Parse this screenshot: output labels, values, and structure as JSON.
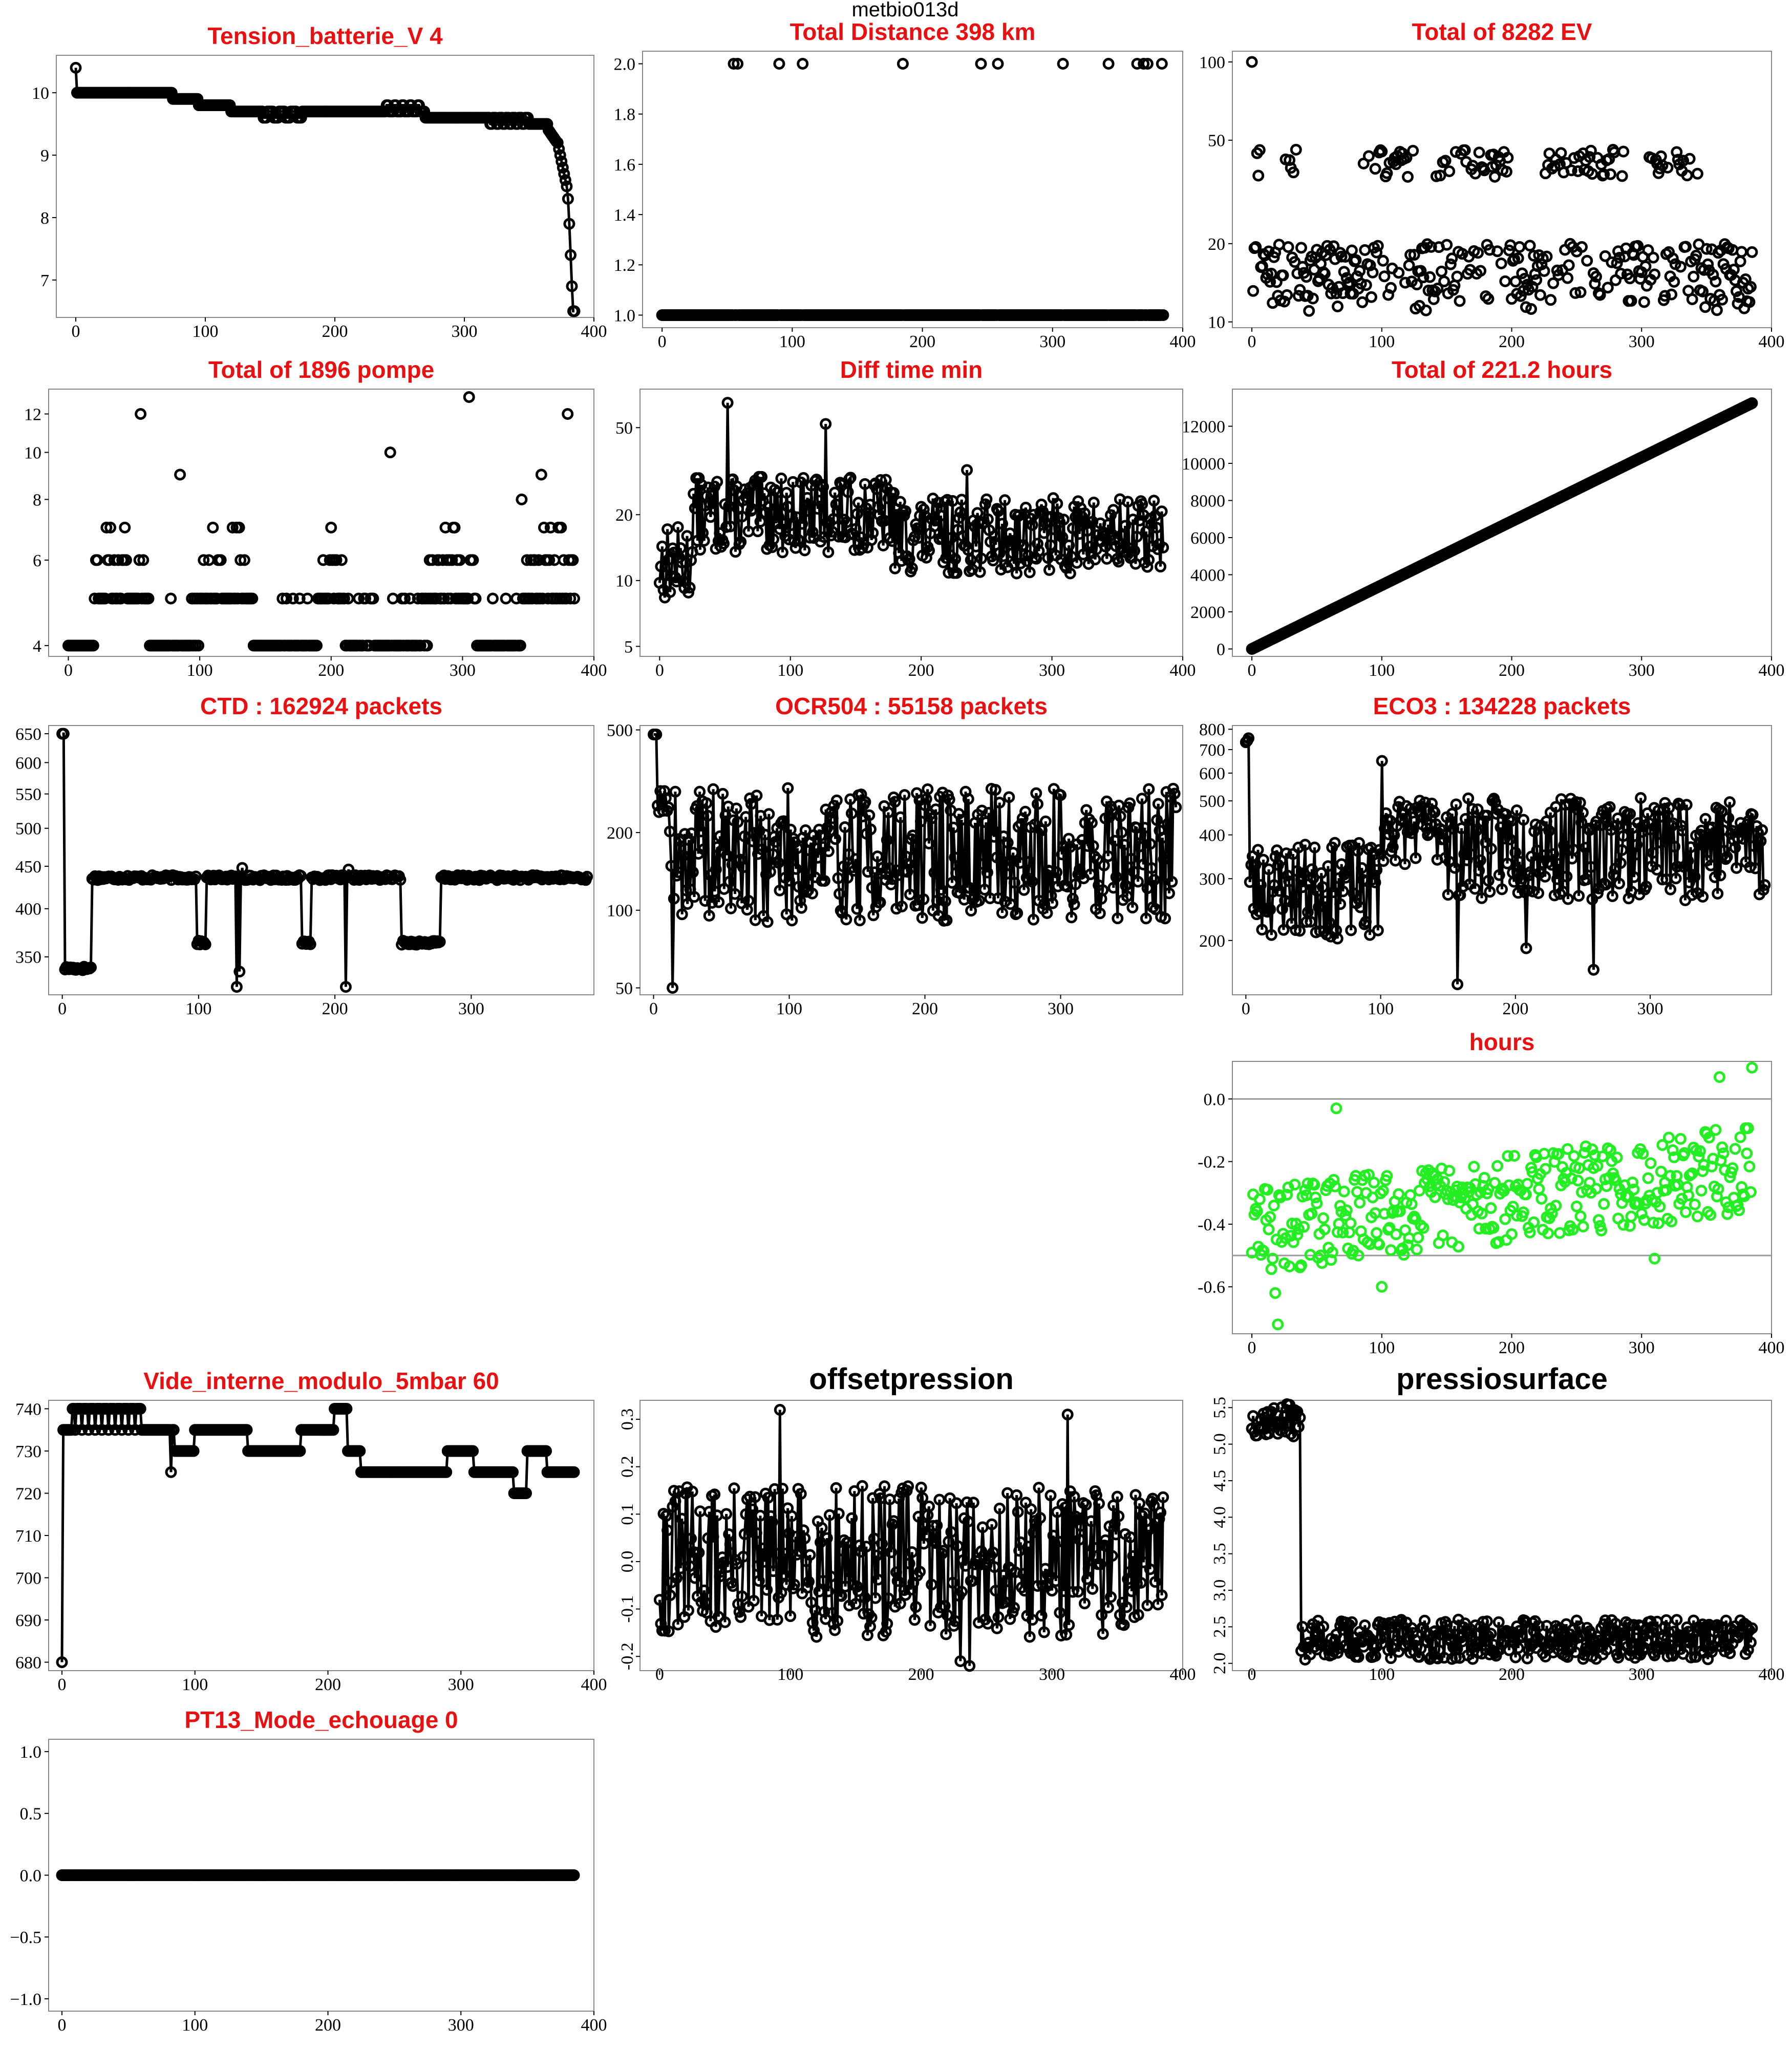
{
  "figure": {
    "suptitle": "metbio013d"
  },
  "chart_data": [
    {
      "id": "tension",
      "type": "line",
      "title": "Tension_batterie_V 4",
      "title_color": "#e81010",
      "xlim": [
        -15,
        400
      ],
      "ylim": [
        6.4,
        10.6
      ],
      "xticks": [
        0,
        100,
        200,
        300,
        400
      ],
      "yticks": [
        {
          "v": 7,
          "label": "7"
        },
        {
          "v": 8,
          "label": "8"
        },
        {
          "v": 9,
          "label": "9"
        },
        {
          "v": 10,
          "label": "10"
        }
      ],
      "gen": "tension",
      "marker_color": "#000000",
      "lines": true
    },
    {
      "id": "distance",
      "type": "scatter",
      "title": "Total Distance  398  km",
      "title_color": "#e81010",
      "xlim": [
        -15,
        400
      ],
      "ylim": [
        0.95,
        2.05
      ],
      "xticks": [
        0,
        100,
        200,
        300,
        400
      ],
      "yticks": [
        {
          "v": 1.0,
          "label": "1.0"
        },
        {
          "v": 1.2,
          "label": "1.2"
        },
        {
          "v": 1.4,
          "label": "1.4"
        },
        {
          "v": 1.6,
          "label": "1.6"
        },
        {
          "v": 1.8,
          "label": "1.8"
        },
        {
          "v": 2.0,
          "label": "2.0"
        }
      ],
      "gen": "distance",
      "marker_color": "#000000",
      "lines": false
    },
    {
      "id": "ev",
      "type": "scatter",
      "title": "Total of  8282  EV",
      "title_color": "#e81010",
      "xlim": [
        -15,
        400
      ],
      "ylim": [
        9.5,
        110
      ],
      "log": true,
      "xticks": [
        0,
        100,
        200,
        300,
        400
      ],
      "yticks": [
        {
          "v": 10,
          "label": "10"
        },
        {
          "v": 20,
          "label": "20"
        },
        {
          "v": 50,
          "label": "50"
        },
        {
          "v": 100,
          "label": "100"
        }
      ],
      "gen": "ev",
      "marker_color": "#000000",
      "lines": false
    },
    {
      "id": "pompe",
      "type": "scatter",
      "title": "Total of  1896  pompe",
      "title_color": "#e81010",
      "xlim": [
        -15,
        400
      ],
      "ylim": [
        3.8,
        13.5
      ],
      "log": true,
      "xticks": [
        0,
        100,
        200,
        300,
        400
      ],
      "yticks": [
        {
          "v": 4,
          "label": "4"
        },
        {
          "v": 6,
          "label": "6"
        },
        {
          "v": 8,
          "label": "8"
        },
        {
          "v": 10,
          "label": "10"
        },
        {
          "v": 12,
          "label": "12"
        }
      ],
      "gen": "pompe",
      "marker_color": "#000000",
      "lines": false
    },
    {
      "id": "difftime",
      "type": "line",
      "title": "Diff time min",
      "title_color": "#e81010",
      "xlim": [
        -15,
        400
      ],
      "ylim": [
        4.5,
        75
      ],
      "log": true,
      "xticks": [
        0,
        100,
        200,
        300,
        400
      ],
      "yticks": [
        {
          "v": 5,
          "label": "5"
        },
        {
          "v": 10,
          "label": "10"
        },
        {
          "v": 20,
          "label": "20"
        },
        {
          "v": 50,
          "label": "50"
        }
      ],
      "gen": "difftime",
      "marker_color": "#000000",
      "lines": true
    },
    {
      "id": "hourstotal",
      "type": "line",
      "title": "Total of  221.2  hours",
      "title_color": "#e81010",
      "xlim": [
        -15,
        400
      ],
      "ylim": [
        -400,
        14000
      ],
      "xticks": [
        0,
        100,
        200,
        300,
        400
      ],
      "yticks": [
        {
          "v": 0,
          "label": "0"
        },
        {
          "v": 2000,
          "label": "2000"
        },
        {
          "v": 4000,
          "label": "4000"
        },
        {
          "v": 6000,
          "label": "6000"
        },
        {
          "v": 8000,
          "label": "8000"
        },
        {
          "v": 10000,
          "label": "10000"
        },
        {
          "v": 12000,
          "label": "12000"
        }
      ],
      "gen": "hourstotal",
      "marker_color": "#000000",
      "lines": true
    },
    {
      "id": "ctd",
      "type": "line",
      "title": "CTD  : 162924  packets",
      "title_color": "#e81010",
      "xlim": [
        -10,
        390
      ],
      "ylim": [
        315,
        665
      ],
      "log": true,
      "xticks": [
        0,
        100,
        200,
        300
      ],
      "yticks": [
        {
          "v": 350,
          "label": "350"
        },
        {
          "v": 400,
          "label": "400"
        },
        {
          "v": 450,
          "label": "450"
        },
        {
          "v": 500,
          "label": "500"
        },
        {
          "v": 550,
          "label": "550"
        },
        {
          "v": 600,
          "label": "600"
        },
        {
          "v": 650,
          "label": "650"
        }
      ],
      "gen": "ctd",
      "marker_color": "#000000",
      "lines": true
    },
    {
      "id": "ocr",
      "type": "line",
      "title": "OCR504  : 55158  packets",
      "title_color": "#e81010",
      "xlim": [
        -10,
        390
      ],
      "ylim": [
        47,
        520
      ],
      "log": true,
      "xticks": [
        0,
        100,
        200,
        300
      ],
      "yticks": [
        {
          "v": 50,
          "label": "50"
        },
        {
          "v": 100,
          "label": "100"
        },
        {
          "v": 200,
          "label": "200"
        },
        {
          "v": 500,
          "label": "500"
        }
      ],
      "gen": "ocr",
      "marker_color": "#000000",
      "lines": true
    },
    {
      "id": "eco3",
      "type": "line",
      "title": "ECO3  : 134228  packets",
      "title_color": "#e81010",
      "xlim": [
        -10,
        390
      ],
      "ylim": [
        140,
        820
      ],
      "log": true,
      "xticks": [
        0,
        100,
        200,
        300
      ],
      "yticks": [
        {
          "v": 200,
          "label": "200"
        },
        {
          "v": 300,
          "label": "300"
        },
        {
          "v": 400,
          "label": "400"
        },
        {
          "v": 500,
          "label": "500"
        },
        {
          "v": 600,
          "label": "600"
        },
        {
          "v": 700,
          "label": "700"
        },
        {
          "v": 800,
          "label": "800"
        }
      ],
      "gen": "eco3",
      "marker_color": "#000000",
      "lines": true
    },
    {
      "id": "hoursdiff",
      "type": "scatter",
      "title": "hours",
      "title_color": "#e81010",
      "xlim": [
        -15,
        400
      ],
      "ylim": [
        -0.75,
        0.12
      ],
      "xticks": [
        0,
        100,
        200,
        300,
        400
      ],
      "yticks": [
        {
          "v": -0.6,
          "label": "-0.6"
        },
        {
          "v": -0.4,
          "label": "-0.4"
        },
        {
          "v": -0.2,
          "label": "-0.2"
        },
        {
          "v": 0.0,
          "label": "0.0"
        }
      ],
      "hlines": [
        0.0,
        -0.5
      ],
      "gen": "hoursdiff",
      "marker_color": "#22ee22",
      "lines": false
    },
    {
      "id": "vide",
      "type": "line",
      "title": "Vide_interne_modulo_5mbar 60",
      "title_color": "#e81010",
      "xlim": [
        -10,
        400
      ],
      "ylim": [
        678,
        742
      ],
      "xticks": [
        0,
        100,
        200,
        300,
        400
      ],
      "yticks": [
        {
          "v": 680,
          "label": "680"
        },
        {
          "v": 690,
          "label": "690"
        },
        {
          "v": 700,
          "label": "700"
        },
        {
          "v": 710,
          "label": "710"
        },
        {
          "v": 720,
          "label": "720"
        },
        {
          "v": 730,
          "label": "730"
        },
        {
          "v": 740,
          "label": "740"
        }
      ],
      "gen": "vide",
      "marker_color": "#000000",
      "lines": true
    },
    {
      "id": "offset",
      "type": "line",
      "title": "offsetpression",
      "title_color": "#000000",
      "xlim": [
        -15,
        400
      ],
      "ylim": [
        -0.23,
        0.34
      ],
      "xticks": [
        0,
        100,
        200,
        300,
        400
      ],
      "small_ticks": true,
      "yticks": [
        {
          "v": -0.2,
          "label": "-0.2"
        },
        {
          "v": -0.1,
          "label": "-0.1"
        },
        {
          "v": 0.0,
          "label": "0.0"
        },
        {
          "v": 0.1,
          "label": "0.1"
        },
        {
          "v": 0.2,
          "label": "0.2"
        },
        {
          "v": 0.3,
          "label": "0.3"
        }
      ],
      "gen": "offset",
      "marker_color": "#000000",
      "lines": true
    },
    {
      "id": "pressio",
      "type": "line",
      "title": "pressiosurface",
      "title_color": "#000000",
      "xlim": [
        -15,
        400
      ],
      "ylim": [
        1.9,
        5.6
      ],
      "xticks": [
        0,
        100,
        200,
        300,
        400
      ],
      "small_ticks": true,
      "yticks": [
        {
          "v": 2.0,
          "label": "2.0"
        },
        {
          "v": 2.5,
          "label": "2.5"
        },
        {
          "v": 3.0,
          "label": "3.0"
        },
        {
          "v": 3.5,
          "label": "3.5"
        },
        {
          "v": 4.0,
          "label": "4.0"
        },
        {
          "v": 4.5,
          "label": "4.5"
        },
        {
          "v": 5.0,
          "label": "5.0"
        },
        {
          "v": 5.5,
          "label": "5.5"
        }
      ],
      "gen": "pressio",
      "marker_color": "#000000",
      "lines": true
    },
    {
      "id": "pt13",
      "type": "line",
      "title": "PT13_Mode_echouage  0",
      "title_color": "#e81010",
      "xlim": [
        -10,
        400
      ],
      "ylim": [
        -1.1,
        1.1
      ],
      "xticks": [
        0,
        100,
        200,
        300,
        400
      ],
      "yticks": [
        {
          "v": -1.0,
          "label": "−1.0"
        },
        {
          "v": -0.5,
          "label": "−0.5"
        },
        {
          "v": 0.0,
          "label": "0.0"
        },
        {
          "v": 0.5,
          "label": "0.5"
        },
        {
          "v": 1.0,
          "label": "1.0"
        }
      ],
      "gen": "pt13",
      "marker_color": "#000000",
      "lines": true
    }
  ]
}
